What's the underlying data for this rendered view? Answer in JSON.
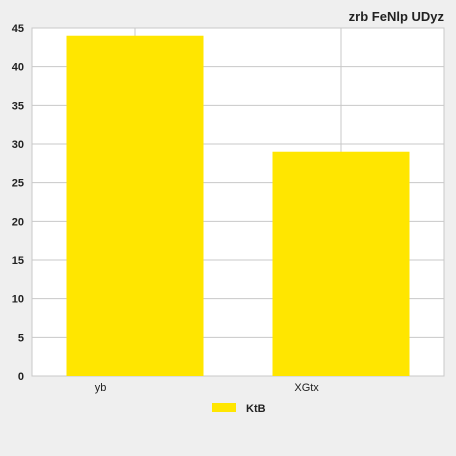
{
  "chart_data": {
    "type": "bar",
    "title": "zrb FeNlp UDyz",
    "xlabel": "",
    "ylabel": "",
    "categories": [
      "yb",
      "XGtx"
    ],
    "series": [
      {
        "name": "KtB",
        "values": [
          44,
          29
        ],
        "color": "#ffe600"
      }
    ],
    "ylim": [
      0,
      45
    ],
    "yticks": [
      0,
      5,
      10,
      15,
      20,
      25,
      30,
      35,
      40,
      45
    ],
    "grid": true,
    "legend_position": "bottom"
  }
}
